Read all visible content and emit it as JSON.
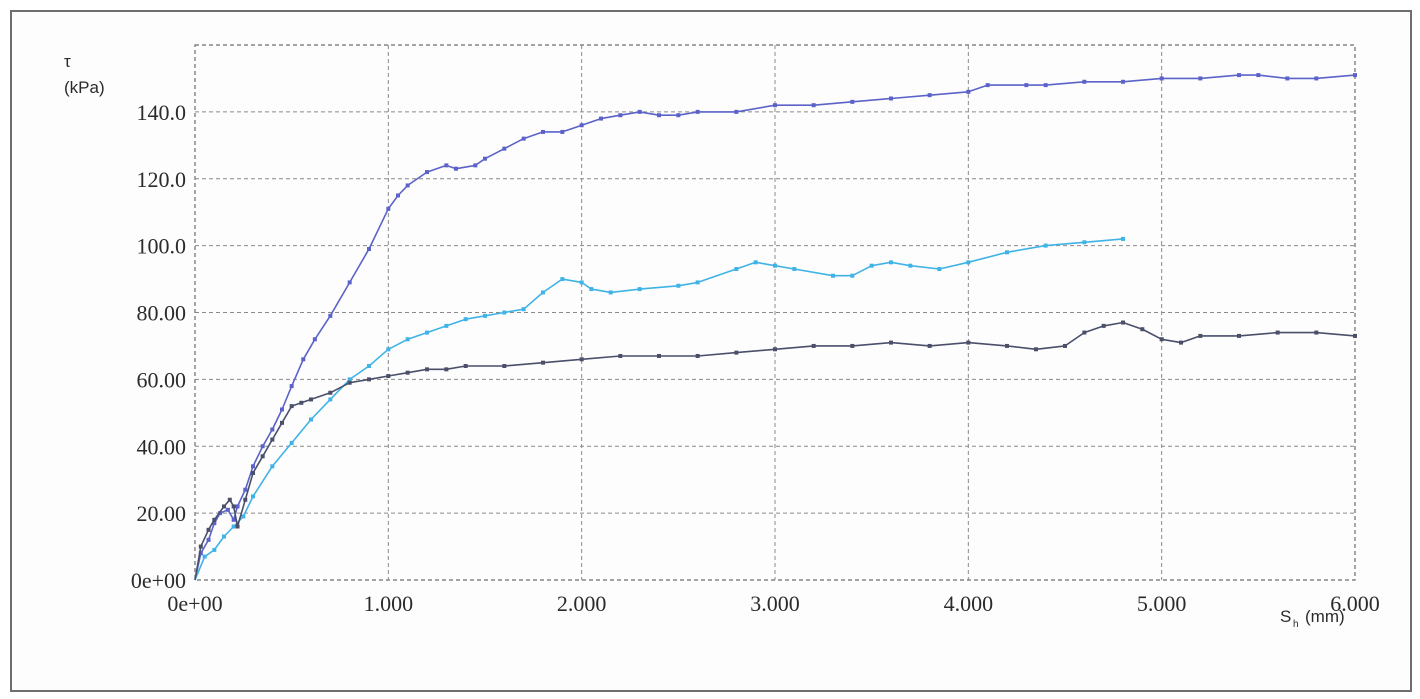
{
  "chart_data": {
    "type": "line",
    "title": "",
    "ylabel_symbol": "τ",
    "ylabel_unit": "(kPa)",
    "xlabel_symbol": "S",
    "xlabel_subscript": "h",
    "xlabel_unit": "(mm)",
    "xlim": [
      0,
      6
    ],
    "ylim": [
      0,
      160
    ],
    "grid": true,
    "x_ticks": [
      {
        "value": 0,
        "label": "0e+00"
      },
      {
        "value": 1,
        "label": "1.000"
      },
      {
        "value": 2,
        "label": "2.000"
      },
      {
        "value": 3,
        "label": "3.000"
      },
      {
        "value": 4,
        "label": "4.000"
      },
      {
        "value": 5,
        "label": "5.000"
      },
      {
        "value": 6,
        "label": "6.000"
      }
    ],
    "y_ticks": [
      {
        "value": 0,
        "label": "0e+00"
      },
      {
        "value": 20,
        "label": "20.00"
      },
      {
        "value": 40,
        "label": "40.00"
      },
      {
        "value": 60,
        "label": "60.00"
      },
      {
        "value": 80,
        "label": "80.00"
      },
      {
        "value": 100,
        "label": "100.0"
      },
      {
        "value": 120,
        "label": "120.0"
      },
      {
        "value": 140,
        "label": "140.0"
      }
    ],
    "series": [
      {
        "color": "#5b63c9",
        "points": [
          [
            0,
            0
          ],
          [
            0.03,
            8
          ],
          [
            0.07,
            12
          ],
          [
            0.1,
            17
          ],
          [
            0.13,
            20
          ],
          [
            0.17,
            21
          ],
          [
            0.2,
            18
          ],
          [
            0.22,
            22
          ],
          [
            0.26,
            27
          ],
          [
            0.3,
            34
          ],
          [
            0.35,
            40
          ],
          [
            0.4,
            45
          ],
          [
            0.45,
            51
          ],
          [
            0.5,
            58
          ],
          [
            0.56,
            66
          ],
          [
            0.62,
            72
          ],
          [
            0.7,
            79
          ],
          [
            0.8,
            89
          ],
          [
            0.9,
            99
          ],
          [
            1.0,
            111
          ],
          [
            1.05,
            115
          ],
          [
            1.1,
            118
          ],
          [
            1.2,
            122
          ],
          [
            1.3,
            124
          ],
          [
            1.35,
            123
          ],
          [
            1.45,
            124
          ],
          [
            1.5,
            126
          ],
          [
            1.6,
            129
          ],
          [
            1.7,
            132
          ],
          [
            1.8,
            134
          ],
          [
            1.9,
            134
          ],
          [
            2.0,
            136
          ],
          [
            2.1,
            138
          ],
          [
            2.2,
            139
          ],
          [
            2.3,
            140
          ],
          [
            2.4,
            139
          ],
          [
            2.5,
            139
          ],
          [
            2.6,
            140
          ],
          [
            2.8,
            140
          ],
          [
            3.0,
            142
          ],
          [
            3.2,
            142
          ],
          [
            3.4,
            143
          ],
          [
            3.6,
            144
          ],
          [
            3.8,
            145
          ],
          [
            4.0,
            146
          ],
          [
            4.1,
            148
          ],
          [
            4.3,
            148
          ],
          [
            4.4,
            148
          ],
          [
            4.6,
            149
          ],
          [
            4.8,
            149
          ],
          [
            5.0,
            150
          ],
          [
            5.2,
            150
          ],
          [
            5.4,
            151
          ],
          [
            5.5,
            151
          ],
          [
            5.65,
            150
          ],
          [
            5.8,
            150
          ],
          [
            6.0,
            151
          ]
        ]
      },
      {
        "color": "#3fb3e6",
        "points": [
          [
            0,
            0
          ],
          [
            0.05,
            7
          ],
          [
            0.1,
            9
          ],
          [
            0.15,
            13
          ],
          [
            0.2,
            16
          ],
          [
            0.25,
            19
          ],
          [
            0.3,
            25
          ],
          [
            0.4,
            34
          ],
          [
            0.5,
            41
          ],
          [
            0.6,
            48
          ],
          [
            0.7,
            54
          ],
          [
            0.8,
            60
          ],
          [
            0.9,
            64
          ],
          [
            1.0,
            69
          ],
          [
            1.1,
            72
          ],
          [
            1.2,
            74
          ],
          [
            1.3,
            76
          ],
          [
            1.4,
            78
          ],
          [
            1.5,
            79
          ],
          [
            1.6,
            80
          ],
          [
            1.7,
            81
          ],
          [
            1.8,
            86
          ],
          [
            1.9,
            90
          ],
          [
            2.0,
            89
          ],
          [
            2.05,
            87
          ],
          [
            2.15,
            86
          ],
          [
            2.3,
            87
          ],
          [
            2.5,
            88
          ],
          [
            2.6,
            89
          ],
          [
            2.8,
            93
          ],
          [
            2.9,
            95
          ],
          [
            3.0,
            94
          ],
          [
            3.1,
            93
          ],
          [
            3.3,
            91
          ],
          [
            3.4,
            91
          ],
          [
            3.5,
            94
          ],
          [
            3.6,
            95
          ],
          [
            3.7,
            94
          ],
          [
            3.85,
            93
          ],
          [
            4.0,
            95
          ],
          [
            4.2,
            98
          ],
          [
            4.4,
            100
          ],
          [
            4.6,
            101
          ],
          [
            4.8,
            102
          ]
        ]
      },
      {
        "color": "#4a4f6a",
        "points": [
          [
            0,
            0
          ],
          [
            0.03,
            10
          ],
          [
            0.07,
            15
          ],
          [
            0.1,
            18
          ],
          [
            0.15,
            22
          ],
          [
            0.18,
            24
          ],
          [
            0.2,
            22
          ],
          [
            0.22,
            16
          ],
          [
            0.26,
            24
          ],
          [
            0.3,
            32
          ],
          [
            0.35,
            37
          ],
          [
            0.4,
            42
          ],
          [
            0.45,
            47
          ],
          [
            0.5,
            52
          ],
          [
            0.55,
            53
          ],
          [
            0.6,
            54
          ],
          [
            0.7,
            56
          ],
          [
            0.8,
            59
          ],
          [
            0.9,
            60
          ],
          [
            1.0,
            61
          ],
          [
            1.1,
            62
          ],
          [
            1.2,
            63
          ],
          [
            1.3,
            63
          ],
          [
            1.4,
            64
          ],
          [
            1.6,
            64
          ],
          [
            1.8,
            65
          ],
          [
            2.0,
            66
          ],
          [
            2.2,
            67
          ],
          [
            2.4,
            67
          ],
          [
            2.6,
            67
          ],
          [
            2.8,
            68
          ],
          [
            3.0,
            69
          ],
          [
            3.2,
            70
          ],
          [
            3.4,
            70
          ],
          [
            3.6,
            71
          ],
          [
            3.8,
            70
          ],
          [
            4.0,
            71
          ],
          [
            4.2,
            70
          ],
          [
            4.35,
            69
          ],
          [
            4.5,
            70
          ],
          [
            4.6,
            74
          ],
          [
            4.7,
            76
          ],
          [
            4.8,
            77
          ],
          [
            4.9,
            75
          ],
          [
            5.0,
            72
          ],
          [
            5.1,
            71
          ],
          [
            5.2,
            73
          ],
          [
            5.4,
            73
          ],
          [
            5.6,
            74
          ],
          [
            5.8,
            74
          ],
          [
            6.0,
            73
          ]
        ]
      }
    ]
  }
}
